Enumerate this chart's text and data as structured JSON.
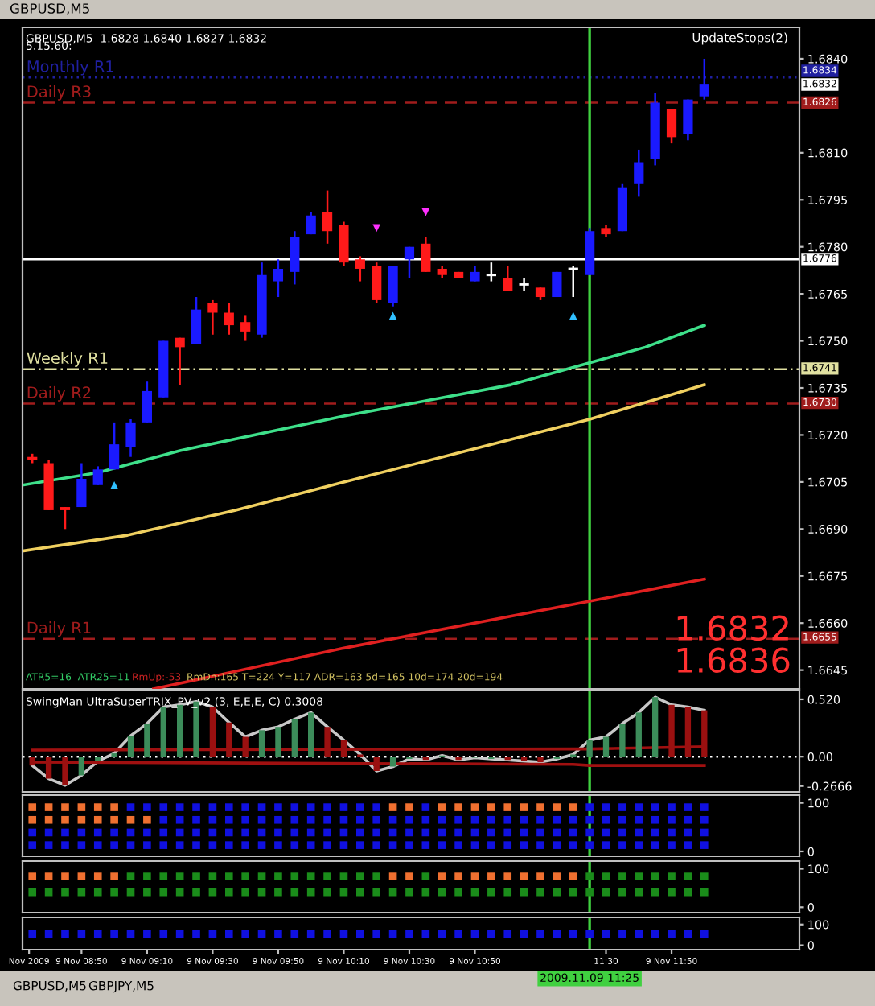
{
  "chart_data": [
    {
      "type": "candlestick",
      "title": "GBPUSD,M5  1.6828 1.6840 1.6827 1.6832",
      "x": [
        "2009-11-09T08:35",
        "2009-11-09T08:40",
        "2009-11-09T08:45",
        "2009-11-09T08:50",
        "2009-11-09T08:55",
        "2009-11-09T09:00",
        "2009-11-09T09:05",
        "2009-11-09T09:10",
        "2009-11-09T09:15",
        "2009-11-09T09:20",
        "2009-11-09T09:25",
        "2009-11-09T09:30",
        "2009-11-09T09:35",
        "2009-11-09T09:40",
        "2009-11-09T09:45",
        "2009-11-09T09:50",
        "2009-11-09T09:55",
        "2009-11-09T10:00",
        "2009-11-09T10:05",
        "2009-11-09T10:10",
        "2009-11-09T10:15",
        "2009-11-09T10:20",
        "2009-11-09T10:25",
        "2009-11-09T10:30",
        "2009-11-09T10:35",
        "2009-11-09T10:40",
        "2009-11-09T10:45",
        "2009-11-09T10:50",
        "2009-11-09T10:55",
        "2009-11-09T11:00",
        "2009-11-09T11:05",
        "2009-11-09T11:10",
        "2009-11-09T11:15",
        "2009-11-09T11:20",
        "2009-11-09T11:25",
        "2009-11-09T11:30",
        "2009-11-09T11:35",
        "2009-11-09T11:40",
        "2009-11-09T11:45",
        "2009-11-09T11:50",
        "2009-11-09T11:55",
        "2009-11-09T12:00"
      ],
      "ohlc": [
        [
          1.6713,
          1.6714,
          1.6711,
          1.6712
        ],
        [
          1.6711,
          1.6712,
          1.6696,
          1.6696
        ],
        [
          1.6697,
          1.6697,
          1.669,
          1.6696
        ],
        [
          1.6697,
          1.6711,
          1.6697,
          1.6706
        ],
        [
          1.6704,
          1.671,
          1.6704,
          1.6709
        ],
        [
          1.6709,
          1.6724,
          1.6709,
          1.6717
        ],
        [
          1.6716,
          1.6725,
          1.6713,
          1.6724
        ],
        [
          1.6724,
          1.6737,
          1.6724,
          1.6734
        ],
        [
          1.6732,
          1.675,
          1.6732,
          1.675
        ],
        [
          1.6751,
          1.6751,
          1.6736,
          1.6748
        ],
        [
          1.6749,
          1.6764,
          1.6749,
          1.676
        ],
        [
          1.6762,
          1.6763,
          1.6752,
          1.6759
        ],
        [
          1.6759,
          1.6762,
          1.6752,
          1.6755
        ],
        [
          1.6756,
          1.6758,
          1.675,
          1.6753
        ],
        [
          1.6752,
          1.6775,
          1.6751,
          1.6771
        ],
        [
          1.6769,
          1.6776,
          1.6764,
          1.6773
        ],
        [
          1.6772,
          1.6785,
          1.6768,
          1.6783
        ],
        [
          1.6784,
          1.6791,
          1.6784,
          1.679
        ],
        [
          1.6791,
          1.6798,
          1.6781,
          1.6785
        ],
        [
          1.6787,
          1.6788,
          1.6774,
          1.6775
        ],
        [
          1.6776,
          1.6777,
          1.6769,
          1.6773
        ],
        [
          1.6774,
          1.6775,
          1.6762,
          1.6763
        ],
        [
          1.6762,
          1.6774,
          1.6761,
          1.6774
        ],
        [
          1.6776,
          1.678,
          1.677,
          1.678
        ],
        [
          1.6781,
          1.6783,
          1.6772,
          1.6772
        ],
        [
          1.6773,
          1.6774,
          1.677,
          1.6771
        ],
        [
          1.6772,
          1.6772,
          1.677,
          1.677
        ],
        [
          1.6769,
          1.6774,
          1.6769,
          1.6772
        ],
        [
          1.6771,
          1.6775,
          1.6769,
          1.6771
        ],
        [
          1.677,
          1.6774,
          1.6766,
          1.6766
        ],
        [
          1.6768,
          1.677,
          1.6766,
          1.6768
        ],
        [
          1.6767,
          1.6767,
          1.6763,
          1.6764
        ],
        [
          1.6764,
          1.6772,
          1.6764,
          1.6772
        ],
        [
          1.6773,
          1.6774,
          1.6764,
          1.6773
        ],
        [
          1.6771,
          1.6786,
          1.6771,
          1.6785
        ],
        [
          1.6786,
          1.6787,
          1.6783,
          1.6784
        ],
        [
          1.6785,
          1.68,
          1.6785,
          1.6799
        ],
        [
          1.68,
          1.6811,
          1.6796,
          1.6807
        ],
        [
          1.6808,
          1.6829,
          1.6806,
          1.6826
        ],
        [
          1.6824,
          1.6824,
          1.6813,
          1.6815
        ],
        [
          1.6816,
          1.6827,
          1.6814,
          1.6827
        ],
        [
          1.6828,
          1.684,
          1.6827,
          1.6832
        ]
      ],
      "colors": [
        "#ff1a1a",
        "#ff1a1a",
        "#ff1a1a",
        "#1a1aff",
        "#1a1aff",
        "#1a1aff",
        "#1a1aff",
        "#1a1aff",
        "#1a1aff",
        "#ff1a1a",
        "#1a1aff",
        "#ff1a1a",
        "#ff1a1a",
        "#ff1a1a",
        "#1a1aff",
        "#1a1aff",
        "#1a1aff",
        "#1a1aff",
        "#ff1a1a",
        "#ff1a1a",
        "#ff1a1a",
        "#ff1a1a",
        "#1a1aff",
        "#1a1aff",
        "#ff1a1a",
        "#ff1a1a",
        "#ff1a1a",
        "#1a1aff",
        "#ffffff",
        "#ff1a1a",
        "#ffffff",
        "#ff1a1a",
        "#1a1aff",
        "#ffffff",
        "#1a1aff",
        "#ff1a1a",
        "#1a1aff",
        "#1a1aff",
        "#1a1aff",
        "#ff1a1a",
        "#1a1aff",
        "#1a1aff"
      ],
      "series": [
        {
          "type": "line",
          "color": "#3ee08a",
          "x": [
            "2009-11-09T08:32",
            "2009-11-09T08:55",
            "2009-11-09T09:20",
            "2009-11-09T10:10",
            "2009-11-09T11:01",
            "2009-11-09T11:25",
            "2009-11-09T11:42",
            "2009-11-09T12:00"
          ],
          "values": [
            1.6704,
            1.6708,
            1.6715,
            1.6726,
            1.6736,
            1.6743,
            1.6748,
            1.6755
          ]
        },
        {
          "type": "line",
          "color": "#f0d060",
          "x": [
            "2009-11-09T08:32",
            "2009-11-09T09:04",
            "2009-11-09T09:37",
            "2009-11-09T10:10",
            "2009-11-09T10:44",
            "2009-11-09T11:25",
            "2009-11-09T12:00"
          ],
          "values": [
            1.6683,
            1.6688,
            1.6696,
            1.6705,
            1.6714,
            1.6725,
            1.6736
          ]
        },
        {
          "type": "line",
          "color": "#e02020",
          "x": [
            "2009-11-09T09:12",
            "2009-11-09T10:10",
            "2009-11-09T11:25",
            "2009-11-09T12:00"
          ],
          "values": [
            1.6639,
            1.6652,
            1.6667,
            1.6674
          ]
        },
        {
          "type": "scatter",
          "marker": "triangle",
          "color": "#30c0ff",
          "x": [
            "2009-11-09T09:00",
            "2009-11-09T10:25",
            "2009-11-09T11:20"
          ],
          "values": [
            1.6704,
            1.6758,
            1.6758
          ]
        },
        {
          "type": "scatter",
          "marker": "triangle_down",
          "color": "#ff30ff",
          "x": [
            "2009-11-09T10:20",
            "2009-11-09T10:35"
          ],
          "values": [
            1.6786,
            1.6791
          ]
        }
      ],
      "xlim": [
        "2009-11-09T08:32",
        "2009-11-09T12:29"
      ],
      "ylim": [
        1.6639,
        1.685
      ],
      "yticks": [
        {
          "value": 1.6645,
          "label": "1.6645"
        },
        {
          "value": 1.666,
          "label": "1.6660"
        },
        {
          "value": 1.6675,
          "label": "1.6675"
        },
        {
          "value": 1.669,
          "label": "1.6690"
        },
        {
          "value": 1.6705,
          "label": "1.6705"
        },
        {
          "value": 1.672,
          "label": "1.6720"
        },
        {
          "value": 1.6735,
          "label": "1.6735"
        },
        {
          "value": 1.675,
          "label": "1.6750"
        },
        {
          "value": 1.6765,
          "label": "1.6765"
        },
        {
          "value": 1.678,
          "label": "1.6780"
        },
        {
          "value": 1.6795,
          "label": "1.6795"
        },
        {
          "value": 1.681,
          "label": "1.6810"
        },
        {
          "value": 1.684,
          "label": "1.6840"
        }
      ],
      "tick_labels": "y",
      "ref_lines": [
        {
          "axis": "y",
          "value": 1.6834,
          "label": "Monthly R1",
          "color": "#2020a0",
          "line_style": "dotted"
        },
        {
          "axis": "y",
          "value": 1.6826,
          "label": "Daily R3",
          "color": "#a01c1c",
          "line_style": "dashed"
        },
        {
          "axis": "y",
          "value": 1.6776,
          "color": "#ffffff",
          "line_style": "solid"
        },
        {
          "axis": "y",
          "value": 1.6741,
          "label": "Weekly R1",
          "color": "#e0e0a0",
          "line_style": "dashdot"
        },
        {
          "axis": "y",
          "value": 1.673,
          "label": "Daily R2",
          "color": "#a01c1c",
          "line_style": "dashed"
        },
        {
          "axis": "y",
          "value": 1.6655,
          "label": "Daily R1",
          "color": "#a01c1c",
          "line_style": "dashed"
        },
        {
          "axis": "x",
          "value": "2009-11-09T11:25",
          "color": "#40d040",
          "line_style": "solid"
        }
      ],
      "annotations": [
        "5.15.60:",
        "UpdateStops(2)",
        "ATR5=16  ATR25=11",
        "RmUp:-53",
        "RmDn:165 T=224 Y=117 ADR=163 5d=165 10d=174 20d=194",
        "1.6832",
        "1.6836",
        "1.6834",
        "1.6832",
        "1.6826",
        "1.6776",
        "1.6741",
        "1.6730",
        "1.6655"
      ]
    },
    {
      "type": "bar",
      "title": "SwingMan UltraSuperTRIX_PV_v2 (3, E,E,E, C) 0.3008",
      "x": [
        "2009-11-09T08:35",
        "2009-11-09T08:40",
        "2009-11-09T08:45",
        "2009-11-09T08:50",
        "2009-11-09T08:55",
        "2009-11-09T09:00",
        "2009-11-09T09:05",
        "2009-11-09T09:10",
        "2009-11-09T09:15",
        "2009-11-09T09:20",
        "2009-11-09T09:25",
        "2009-11-09T09:30",
        "2009-11-09T09:35",
        "2009-11-09T09:40",
        "2009-11-09T09:45",
        "2009-11-09T09:50",
        "2009-11-09T09:55",
        "2009-11-09T10:00",
        "2009-11-09T10:05",
        "2009-11-09T10:10",
        "2009-11-09T10:15",
        "2009-11-09T10:20",
        "2009-11-09T10:25",
        "2009-11-09T10:30",
        "2009-11-09T10:35",
        "2009-11-09T10:40",
        "2009-11-09T10:45",
        "2009-11-09T10:50",
        "2009-11-09T10:55",
        "2009-11-09T11:00",
        "2009-11-09T11:05",
        "2009-11-09T11:10",
        "2009-11-09T11:15",
        "2009-11-09T11:20",
        "2009-11-09T11:25",
        "2009-11-09T11:30",
        "2009-11-09T11:35",
        "2009-11-09T11:40",
        "2009-11-09T11:45",
        "2009-11-09T11:50",
        "2009-11-09T11:55",
        "2009-11-09T12:00"
      ],
      "series": [
        {
          "type": "bar",
          "values": [
            -0.08,
            -0.2,
            -0.26,
            -0.17,
            -0.04,
            0.03,
            0.19,
            0.3,
            0.45,
            0.47,
            0.5,
            0.45,
            0.31,
            0.18,
            0.24,
            0.27,
            0.34,
            0.4,
            0.27,
            0.15,
            0.02,
            -0.13,
            -0.09,
            -0.02,
            -0.03,
            0.01,
            -0.03,
            -0.01,
            -0.02,
            -0.03,
            -0.04,
            -0.05,
            -0.02,
            0.02,
            0.15,
            0.18,
            0.3,
            0.4,
            0.54,
            0.47,
            0.45,
            0.42
          ],
          "colors": [
            "#9a1010",
            "#9a1010",
            "#9a1010",
            "#3c8c5a",
            "#3c8c5a",
            "#3c8c5a",
            "#3c8c5a",
            "#3c8c5a",
            "#3c8c5a",
            "#3c8c5a",
            "#3c8c5a",
            "#9a1010",
            "#9a1010",
            "#9a1010",
            "#3c8c5a",
            "#3c8c5a",
            "#3c8c5a",
            "#3c8c5a",
            "#9a1010",
            "#9a1010",
            "#9a1010",
            "#9a1010",
            "#3c8c5a",
            "#3c8c5a",
            "#9a1010",
            "#3c8c5a",
            "#9a1010",
            "#3c8c5a",
            "#3c8c5a",
            "#9a1010",
            "#9a1010",
            "#9a1010",
            "#3c8c5a",
            "#3c8c5a",
            "#3c8c5a",
            "#3c8c5a",
            "#3c8c5a",
            "#3c8c5a",
            "#3c8c5a",
            "#9a1010",
            "#9a1010",
            "#9a1010"
          ]
        },
        {
          "type": "line",
          "color": "#c8c8c8",
          "values": [
            -0.08,
            -0.2,
            -0.26,
            -0.17,
            -0.04,
            0.03,
            0.19,
            0.3,
            0.45,
            0.47,
            0.5,
            0.45,
            0.31,
            0.18,
            0.24,
            0.27,
            0.34,
            0.4,
            0.27,
            0.15,
            0.02,
            -0.13,
            -0.09,
            -0.02,
            -0.03,
            0.01,
            -0.03,
            -0.01,
            -0.02,
            -0.03,
            -0.04,
            -0.05,
            -0.02,
            0.02,
            0.15,
            0.18,
            0.3,
            0.4,
            0.54,
            0.47,
            0.45,
            0.42
          ]
        },
        {
          "type": "line",
          "color": "#a01010",
          "x": [
            "2009-11-09T08:35",
            "2009-11-09T11:20",
            "2009-11-09T11:25",
            "2009-11-09T12:00"
          ],
          "values": [
            0.06,
            0.07,
            0.07,
            0.09
          ]
        },
        {
          "type": "line",
          "color": "#a01010",
          "x": [
            "2009-11-09T08:35",
            "2009-11-09T11:20",
            "2009-11-09T11:25",
            "2009-11-09T12:00"
          ],
          "values": [
            -0.05,
            -0.07,
            -0.08,
            -0.08
          ]
        }
      ],
      "xlim": [
        "2009-11-09T08:32",
        "2009-11-09T12:29"
      ],
      "ylim": [
        -0.32,
        0.6
      ],
      "yticks": [
        {
          "value": 0.52,
          "label": "0.520"
        },
        {
          "value": 0,
          "label": "0.00"
        },
        {
          "value": -0.2666,
          "label": "-0.2666"
        }
      ],
      "tick_labels": "y",
      "ref_lines": [
        {
          "axis": "y",
          "value": 0,
          "color": "#ffffff",
          "line_style": "dotted"
        },
        {
          "axis": "x",
          "value": "2009-11-09T11:25",
          "color": "#40d040",
          "line_style": "solid"
        }
      ]
    },
    {
      "type": "scatter",
      "marker": "square",
      "x": [
        "2009-11-09T08:35",
        "2009-11-09T08:40",
        "2009-11-09T08:45",
        "2009-11-09T08:50",
        "2009-11-09T08:55",
        "2009-11-09T09:00",
        "2009-11-09T09:05",
        "2009-11-09T09:10",
        "2009-11-09T09:15",
        "2009-11-09T09:20",
        "2009-11-09T09:25",
        "2009-11-09T09:30",
        "2009-11-09T09:35",
        "2009-11-09T09:40",
        "2009-11-09T09:45",
        "2009-11-09T09:50",
        "2009-11-09T09:55",
        "2009-11-09T10:00",
        "2009-11-09T10:05",
        "2009-11-09T10:10",
        "2009-11-09T10:15",
        "2009-11-09T10:20",
        "2009-11-09T10:25",
        "2009-11-09T10:30",
        "2009-11-09T10:35",
        "2009-11-09T10:40",
        "2009-11-09T10:45",
        "2009-11-09T10:50",
        "2009-11-09T10:55",
        "2009-11-09T11:00",
        "2009-11-09T11:05",
        "2009-11-09T11:10",
        "2009-11-09T11:15",
        "2009-11-09T11:20",
        "2009-11-09T11:25",
        "2009-11-09T11:30",
        "2009-11-09T11:35",
        "2009-11-09T11:40",
        "2009-11-09T11:45",
        "2009-11-09T11:50",
        "2009-11-09T11:55",
        "2009-11-09T12:00"
      ],
      "series": [
        {
          "values": [
            91,
            91,
            91,
            91,
            91,
            91,
            91,
            91,
            91,
            91,
            91,
            91,
            91,
            91,
            91,
            91,
            91,
            91,
            91,
            91,
            91,
            91,
            91,
            91,
            91,
            91,
            91,
            91,
            91,
            91,
            91,
            91,
            91,
            91,
            91,
            91,
            91,
            91,
            91,
            91,
            91,
            91
          ],
          "colors": [
            "#f07030",
            "#f07030",
            "#f07030",
            "#f07030",
            "#f07030",
            "#f07030",
            "#1010e0",
            "#1010e0",
            "#1010e0",
            "#1010e0",
            "#1010e0",
            "#1010e0",
            "#1010e0",
            "#1010e0",
            "#1010e0",
            "#1010e0",
            "#1010e0",
            "#1010e0",
            "#1010e0",
            "#1010e0",
            "#1010e0",
            "#1010e0",
            "#f07030",
            "#f07030",
            "#1010e0",
            "#f07030",
            "#f07030",
            "#f07030",
            "#f07030",
            "#f07030",
            "#f07030",
            "#f07030",
            "#f07030",
            "#f07030",
            "#1010e0",
            "#1010e0",
            "#1010e0",
            "#1010e0",
            "#1010e0",
            "#1010e0",
            "#1010e0",
            "#1010e0"
          ]
        },
        {
          "values": [
            65,
            65,
            65,
            65,
            65,
            65,
            65,
            65,
            65,
            65,
            65,
            65,
            65,
            65,
            65,
            65,
            65,
            65,
            65,
            65,
            65,
            65,
            65,
            65,
            65,
            65,
            65,
            65,
            65,
            65,
            65,
            65,
            65,
            65,
            65,
            65,
            65,
            65,
            65,
            65,
            65,
            65
          ],
          "colors": [
            "#f07030",
            "#f07030",
            "#f07030",
            "#f07030",
            "#f07030",
            "#f07030",
            "#f07030",
            "#f07030",
            "#1010e0",
            "#1010e0",
            "#1010e0",
            "#1010e0",
            "#1010e0",
            "#1010e0",
            "#1010e0",
            "#1010e0",
            "#1010e0",
            "#1010e0",
            "#1010e0",
            "#1010e0",
            "#1010e0",
            "#1010e0",
            "#1010e0",
            "#1010e0",
            "#1010e0",
            "#1010e0",
            "#1010e0",
            "#1010e0",
            "#1010e0",
            "#1010e0",
            "#1010e0",
            "#1010e0",
            "#1010e0",
            "#1010e0",
            "#1010e0",
            "#1010e0",
            "#1010e0",
            "#1010e0",
            "#1010e0",
            "#1010e0",
            "#1010e0",
            "#1010e0"
          ]
        },
        {
          "values": [
            39,
            39,
            39,
            39,
            39,
            39,
            39,
            39,
            39,
            39,
            39,
            39,
            39,
            39,
            39,
            39,
            39,
            39,
            39,
            39,
            39,
            39,
            39,
            39,
            39,
            39,
            39,
            39,
            39,
            39,
            39,
            39,
            39,
            39,
            39,
            39,
            39,
            39,
            39,
            39,
            39,
            39
          ],
          "color": "#1010e0"
        },
        {
          "values": [
            13,
            13,
            13,
            13,
            13,
            13,
            13,
            13,
            13,
            13,
            13,
            13,
            13,
            13,
            13,
            13,
            13,
            13,
            13,
            13,
            13,
            13,
            13,
            13,
            13,
            13,
            13,
            13,
            13,
            13,
            13,
            13,
            13,
            13,
            13,
            13,
            13,
            13,
            13,
            13,
            13,
            13
          ],
          "color": "#1010e0"
        }
      ],
      "xlim": [
        "2009-11-09T08:32",
        "2009-11-09T12:29"
      ],
      "ylim": [
        -10,
        116
      ],
      "yticks": [
        0,
        100
      ],
      "tick_labels": "y",
      "ref_lines": [
        {
          "axis": "x",
          "value": "2009-11-09T11:25",
          "color": "#40d040",
          "line_style": "solid"
        }
      ]
    },
    {
      "type": "scatter",
      "marker": "square",
      "x": [
        "2009-11-09T08:35",
        "2009-11-09T08:40",
        "2009-11-09T08:45",
        "2009-11-09T08:50",
        "2009-11-09T08:55",
        "2009-11-09T09:00",
        "2009-11-09T09:05",
        "2009-11-09T09:10",
        "2009-11-09T09:15",
        "2009-11-09T09:20",
        "2009-11-09T09:25",
        "2009-11-09T09:30",
        "2009-11-09T09:35",
        "2009-11-09T09:40",
        "2009-11-09T09:45",
        "2009-11-09T09:50",
        "2009-11-09T09:55",
        "2009-11-09T10:00",
        "2009-11-09T10:05",
        "2009-11-09T10:10",
        "2009-11-09T10:15",
        "2009-11-09T10:20",
        "2009-11-09T10:25",
        "2009-11-09T10:30",
        "2009-11-09T10:35",
        "2009-11-09T10:40",
        "2009-11-09T10:45",
        "2009-11-09T10:50",
        "2009-11-09T10:55",
        "2009-11-09T11:00",
        "2009-11-09T11:05",
        "2009-11-09T11:10",
        "2009-11-09T11:15",
        "2009-11-09T11:20",
        "2009-11-09T11:25",
        "2009-11-09T11:30",
        "2009-11-09T11:35",
        "2009-11-09T11:40",
        "2009-11-09T11:45",
        "2009-11-09T11:50",
        "2009-11-09T11:55",
        "2009-11-09T12:00"
      ],
      "series": [
        {
          "values": [
            80,
            80,
            80,
            80,
            80,
            80,
            80,
            80,
            80,
            80,
            80,
            80,
            80,
            80,
            80,
            80,
            80,
            80,
            80,
            80,
            80,
            80,
            80,
            80,
            80,
            80,
            80,
            80,
            80,
            80,
            80,
            80,
            80,
            80,
            80,
            80,
            80,
            80,
            80,
            80,
            80,
            80
          ],
          "colors": [
            "#f07030",
            "#f07030",
            "#f07030",
            "#f07030",
            "#f07030",
            "#f07030",
            "#1a8c1a",
            "#1a8c1a",
            "#1a8c1a",
            "#1a8c1a",
            "#1a8c1a",
            "#1a8c1a",
            "#1a8c1a",
            "#1a8c1a",
            "#1a8c1a",
            "#1a8c1a",
            "#1a8c1a",
            "#1a8c1a",
            "#1a8c1a",
            "#1a8c1a",
            "#1a8c1a",
            "#1a8c1a",
            "#f07030",
            "#f07030",
            "#1a8c1a",
            "#f07030",
            "#f07030",
            "#f07030",
            "#f07030",
            "#f07030",
            "#f07030",
            "#f07030",
            "#f07030",
            "#f07030",
            "#1a8c1a",
            "#1a8c1a",
            "#1a8c1a",
            "#1a8c1a",
            "#1a8c1a",
            "#1a8c1a",
            "#1a8c1a",
            "#1a8c1a"
          ]
        },
        {
          "values": [
            39,
            39,
            39,
            39,
            39,
            39,
            39,
            39,
            39,
            39,
            39,
            39,
            39,
            39,
            39,
            39,
            39,
            39,
            39,
            39,
            39,
            39,
            39,
            39,
            39,
            39,
            39,
            39,
            39,
            39,
            39,
            39,
            39,
            39,
            39,
            39,
            39,
            39,
            39,
            39,
            39,
            39
          ],
          "color": "#1a8c1a"
        }
      ],
      "xlim": [
        "2009-11-09T08:32",
        "2009-11-09T12:29"
      ],
      "ylim": [
        -14,
        120
      ],
      "yticks": [
        0,
        100
      ],
      "tick_labels": "y",
      "ref_lines": [
        {
          "axis": "x",
          "value": "2009-11-09T11:25",
          "color": "#40d040",
          "line_style": "solid"
        }
      ]
    },
    {
      "type": "scatter",
      "marker": "square",
      "x": [
        "2009-11-09T08:35",
        "2009-11-09T08:40",
        "2009-11-09T08:45",
        "2009-11-09T08:50",
        "2009-11-09T08:55",
        "2009-11-09T09:00",
        "2009-11-09T09:05",
        "2009-11-09T09:10",
        "2009-11-09T09:15",
        "2009-11-09T09:20",
        "2009-11-09T09:25",
        "2009-11-09T09:30",
        "2009-11-09T09:35",
        "2009-11-09T09:40",
        "2009-11-09T09:45",
        "2009-11-09T09:50",
        "2009-11-09T09:55",
        "2009-11-09T10:00",
        "2009-11-09T10:05",
        "2009-11-09T10:10",
        "2009-11-09T10:15",
        "2009-11-09T10:20",
        "2009-11-09T10:25",
        "2009-11-09T10:30",
        "2009-11-09T10:35",
        "2009-11-09T10:40",
        "2009-11-09T10:45",
        "2009-11-09T10:50",
        "2009-11-09T10:55",
        "2009-11-09T11:00",
        "2009-11-09T11:05",
        "2009-11-09T11:10",
        "2009-11-09T11:15",
        "2009-11-09T11:20",
        "2009-11-09T11:25",
        "2009-11-09T11:30",
        "2009-11-09T11:35",
        "2009-11-09T11:40",
        "2009-11-09T11:45",
        "2009-11-09T11:50",
        "2009-11-09T11:55",
        "2009-11-09T12:00"
      ],
      "series": [
        {
          "values": [
            54,
            54,
            54,
            54,
            54,
            54,
            54,
            54,
            54,
            54,
            54,
            54,
            54,
            54,
            54,
            54,
            54,
            54,
            54,
            54,
            54,
            54,
            54,
            54,
            54,
            54,
            54,
            54,
            54,
            54,
            54,
            54,
            54,
            54,
            54,
            54,
            54,
            54,
            54,
            54,
            54,
            54
          ],
          "color": "#1010e0"
        }
      ],
      "xlim": [
        "2009-11-09T08:32",
        "2009-11-09T12:29"
      ],
      "ylim": [
        -21,
        134
      ],
      "yticks": [
        0,
        100
      ],
      "xticks": [
        {
          "value": "2009-11-09T08:34",
          "label": "Nov 2009"
        },
        {
          "value": "2009-11-09T08:50",
          "label": "9 Nov 08:50"
        },
        {
          "value": "2009-11-09T09:10",
          "label": "9 Nov 09:10"
        },
        {
          "value": "2009-11-09T09:30",
          "label": "9 Nov 09:30"
        },
        {
          "value": "2009-11-09T09:50",
          "label": "9 Nov 09:50"
        },
        {
          "value": "2009-11-09T10:10",
          "label": "9 Nov 10:10"
        },
        {
          "value": "2009-11-09T10:30",
          "label": "9 Nov 10:30"
        },
        {
          "value": "2009-11-09T10:50",
          "label": "9 Nov 10:50"
        },
        {
          "value": "2009-11-09T11:30",
          "label": "11:30"
        },
        {
          "value": "2009-11-09T11:50",
          "label": "9 Nov 11:50"
        }
      ],
      "ref_lines": [
        {
          "axis": "x",
          "value": "2009-11-09T11:25",
          "label": "2009.11.09 11:25",
          "color": "#40d040",
          "line_style": "solid"
        }
      ],
      "annotations": [
        "GBPUSD,M5",
        "GBPUSD,M5",
        "GBPJPY,M5"
      ]
    }
  ]
}
